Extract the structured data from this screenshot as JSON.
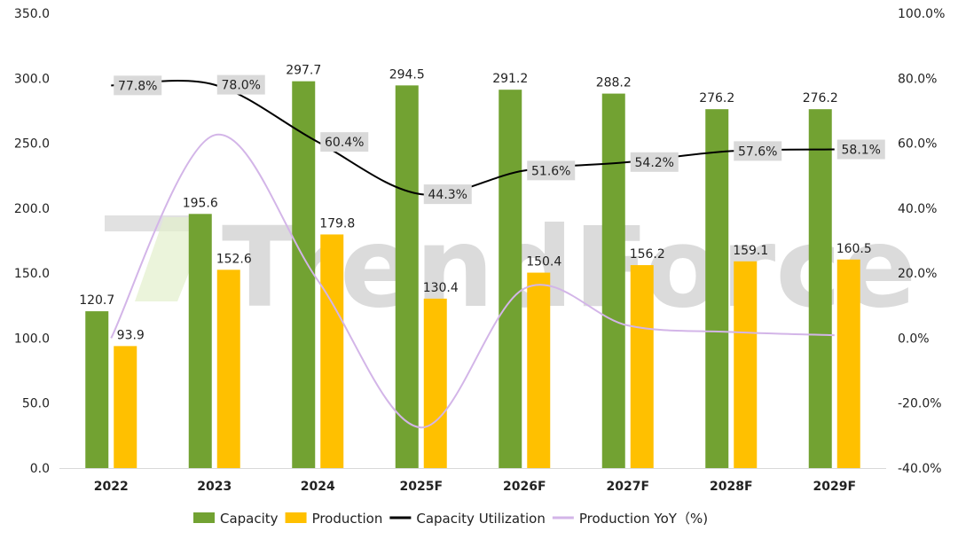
{
  "chart_data": {
    "type": "bar",
    "watermark": "TrendForce",
    "categories": [
      "2022",
      "2023",
      "2024",
      "2025F",
      "2026F",
      "2027F",
      "2028F",
      "2029F"
    ],
    "left_axis": {
      "ylim": [
        0,
        350
      ],
      "ticks": [
        "0.0",
        "50.0",
        "100.0",
        "150.0",
        "200.0",
        "250.0",
        "300.0",
        "350.0"
      ]
    },
    "right_axis": {
      "ylim": [
        -40,
        100
      ],
      "unit": "%",
      "ticks": [
        "-40.0%",
        "-20.0%",
        "0.0%",
        "20.0%",
        "40.0%",
        "60.0%",
        "80.0%",
        "100.0%"
      ]
    },
    "grid": false,
    "legend_position": "bottom",
    "series": [
      {
        "name": "Capacity",
        "kind": "bar",
        "axis": "left",
        "color": "#72a232",
        "values": [
          120.7,
          195.6,
          297.7,
          294.5,
          291.2,
          288.2,
          276.2,
          276.2
        ],
        "labels": [
          "120.7",
          "195.6",
          "297.7",
          "294.5",
          "291.2",
          "288.2",
          "276.2",
          "276.2"
        ]
      },
      {
        "name": "Production",
        "kind": "bar",
        "axis": "left",
        "color": "#ffc000",
        "values": [
          93.9,
          152.6,
          179.8,
          130.4,
          150.4,
          156.2,
          159.1,
          160.5
        ],
        "labels": [
          "93.9",
          "152.6",
          "179.8",
          "130.4",
          "150.4",
          "156.2",
          "159.1",
          "160.5"
        ]
      },
      {
        "name": "Capacity Utilization",
        "kind": "line",
        "axis": "right",
        "color": "#000000",
        "values": [
          77.8,
          78.0,
          60.4,
          44.3,
          51.6,
          54.2,
          57.6,
          58.1
        ],
        "labels": [
          "77.8%",
          "78.0%",
          "60.4%",
          "44.3%",
          "51.6%",
          "54.2%",
          "57.6%",
          "58.1%"
        ]
      },
      {
        "name": "Production YoY（%)",
        "kind": "line",
        "axis": "right",
        "color": "#d3b5e8",
        "values": [
          0.0,
          62.5,
          17.8,
          -27.5,
          15.3,
          3.9,
          1.9,
          0.9
        ]
      }
    ]
  }
}
